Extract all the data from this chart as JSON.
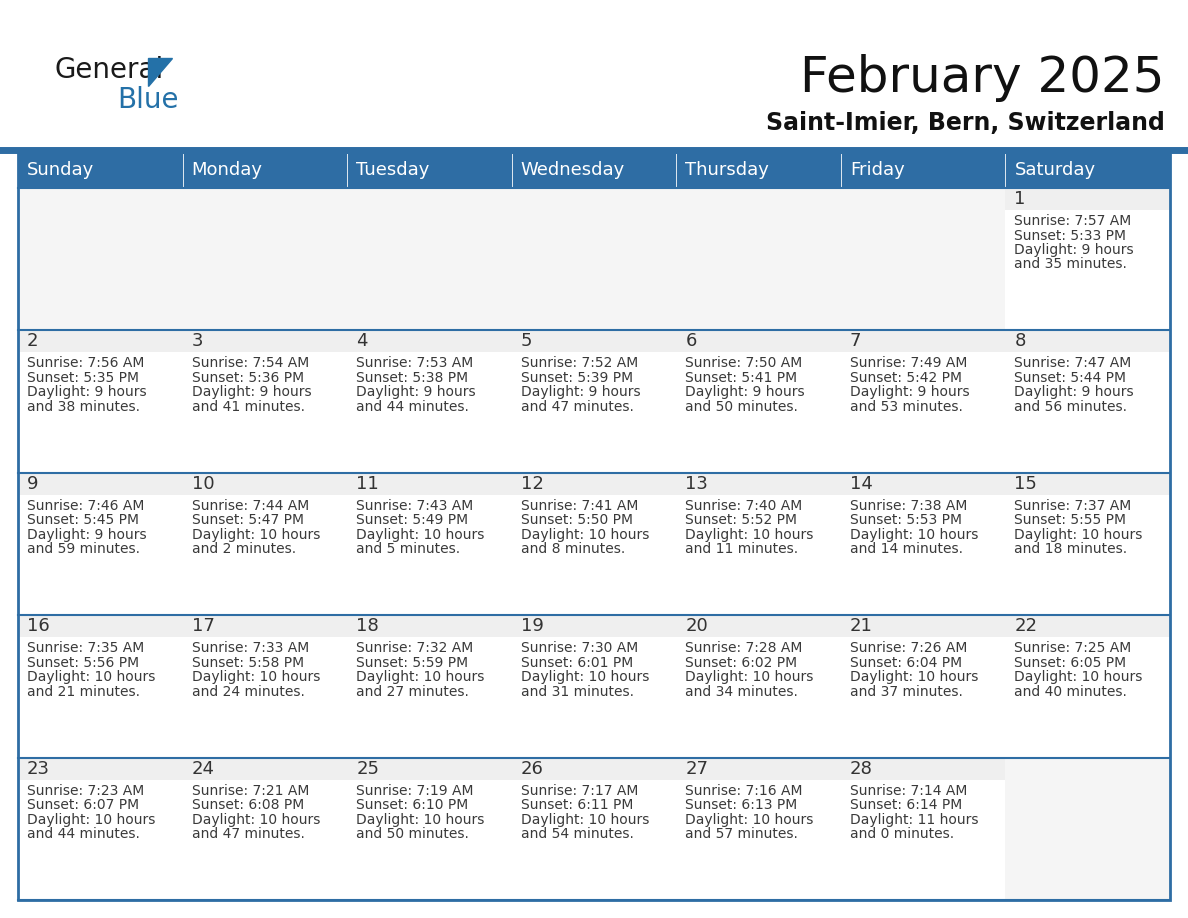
{
  "title": "February 2025",
  "subtitle": "Saint-Imier, Bern, Switzerland",
  "days_of_week": [
    "Sunday",
    "Monday",
    "Tuesday",
    "Wednesday",
    "Thursday",
    "Friday",
    "Saturday"
  ],
  "header_bg": "#2E6DA4",
  "header_text": "#FFFFFF",
  "cell_bg_top": "#EFEFEF",
  "cell_bg_main": "#FFFFFF",
  "border_color": "#2E6DA4",
  "text_color": "#3a3a3a",
  "day_num_color": "#333333",
  "calendar_data": [
    [
      null,
      null,
      null,
      null,
      null,
      null,
      {
        "day": 1,
        "sunrise": "7:57 AM",
        "sunset": "5:33 PM",
        "daylight": "9 hours",
        "daylight2": "and 35 minutes."
      }
    ],
    [
      {
        "day": 2,
        "sunrise": "7:56 AM",
        "sunset": "5:35 PM",
        "daylight": "9 hours",
        "daylight2": "and 38 minutes."
      },
      {
        "day": 3,
        "sunrise": "7:54 AM",
        "sunset": "5:36 PM",
        "daylight": "9 hours",
        "daylight2": "and 41 minutes."
      },
      {
        "day": 4,
        "sunrise": "7:53 AM",
        "sunset": "5:38 PM",
        "daylight": "9 hours",
        "daylight2": "and 44 minutes."
      },
      {
        "day": 5,
        "sunrise": "7:52 AM",
        "sunset": "5:39 PM",
        "daylight": "9 hours",
        "daylight2": "and 47 minutes."
      },
      {
        "day": 6,
        "sunrise": "7:50 AM",
        "sunset": "5:41 PM",
        "daylight": "9 hours",
        "daylight2": "and 50 minutes."
      },
      {
        "day": 7,
        "sunrise": "7:49 AM",
        "sunset": "5:42 PM",
        "daylight": "9 hours",
        "daylight2": "and 53 minutes."
      },
      {
        "day": 8,
        "sunrise": "7:47 AM",
        "sunset": "5:44 PM",
        "daylight": "9 hours",
        "daylight2": "and 56 minutes."
      }
    ],
    [
      {
        "day": 9,
        "sunrise": "7:46 AM",
        "sunset": "5:45 PM",
        "daylight": "9 hours",
        "daylight2": "and 59 minutes."
      },
      {
        "day": 10,
        "sunrise": "7:44 AM",
        "sunset": "5:47 PM",
        "daylight": "10 hours",
        "daylight2": "and 2 minutes."
      },
      {
        "day": 11,
        "sunrise": "7:43 AM",
        "sunset": "5:49 PM",
        "daylight": "10 hours",
        "daylight2": "and 5 minutes."
      },
      {
        "day": 12,
        "sunrise": "7:41 AM",
        "sunset": "5:50 PM",
        "daylight": "10 hours",
        "daylight2": "and 8 minutes."
      },
      {
        "day": 13,
        "sunrise": "7:40 AM",
        "sunset": "5:52 PM",
        "daylight": "10 hours",
        "daylight2": "and 11 minutes."
      },
      {
        "day": 14,
        "sunrise": "7:38 AM",
        "sunset": "5:53 PM",
        "daylight": "10 hours",
        "daylight2": "and 14 minutes."
      },
      {
        "day": 15,
        "sunrise": "7:37 AM",
        "sunset": "5:55 PM",
        "daylight": "10 hours",
        "daylight2": "and 18 minutes."
      }
    ],
    [
      {
        "day": 16,
        "sunrise": "7:35 AM",
        "sunset": "5:56 PM",
        "daylight": "10 hours",
        "daylight2": "and 21 minutes."
      },
      {
        "day": 17,
        "sunrise": "7:33 AM",
        "sunset": "5:58 PM",
        "daylight": "10 hours",
        "daylight2": "and 24 minutes."
      },
      {
        "day": 18,
        "sunrise": "7:32 AM",
        "sunset": "5:59 PM",
        "daylight": "10 hours",
        "daylight2": "and 27 minutes."
      },
      {
        "day": 19,
        "sunrise": "7:30 AM",
        "sunset": "6:01 PM",
        "daylight": "10 hours",
        "daylight2": "and 31 minutes."
      },
      {
        "day": 20,
        "sunrise": "7:28 AM",
        "sunset": "6:02 PM",
        "daylight": "10 hours",
        "daylight2": "and 34 minutes."
      },
      {
        "day": 21,
        "sunrise": "7:26 AM",
        "sunset": "6:04 PM",
        "daylight": "10 hours",
        "daylight2": "and 37 minutes."
      },
      {
        "day": 22,
        "sunrise": "7:25 AM",
        "sunset": "6:05 PM",
        "daylight": "10 hours",
        "daylight2": "and 40 minutes."
      }
    ],
    [
      {
        "day": 23,
        "sunrise": "7:23 AM",
        "sunset": "6:07 PM",
        "daylight": "10 hours",
        "daylight2": "and 44 minutes."
      },
      {
        "day": 24,
        "sunrise": "7:21 AM",
        "sunset": "6:08 PM",
        "daylight": "10 hours",
        "daylight2": "and 47 minutes."
      },
      {
        "day": 25,
        "sunrise": "7:19 AM",
        "sunset": "6:10 PM",
        "daylight": "10 hours",
        "daylight2": "and 50 minutes."
      },
      {
        "day": 26,
        "sunrise": "7:17 AM",
        "sunset": "6:11 PM",
        "daylight": "10 hours",
        "daylight2": "and 54 minutes."
      },
      {
        "day": 27,
        "sunrise": "7:16 AM",
        "sunset": "6:13 PM",
        "daylight": "10 hours",
        "daylight2": "and 57 minutes."
      },
      {
        "day": 28,
        "sunrise": "7:14 AM",
        "sunset": "6:14 PM",
        "daylight": "11 hours",
        "daylight2": "and 0 minutes."
      },
      null
    ]
  ],
  "logo_text_general": "General",
  "logo_text_blue": "Blue",
  "logo_color_general": "#1a1a1a",
  "logo_color_blue": "#2471A8",
  "title_fontsize": 36,
  "subtitle_fontsize": 17,
  "header_fontsize": 13,
  "daynum_fontsize": 13,
  "cell_text_fontsize": 10
}
